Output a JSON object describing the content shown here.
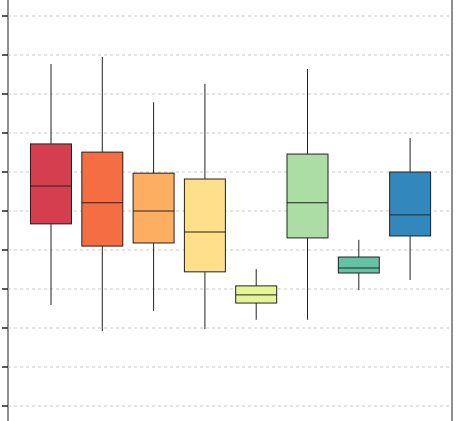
{
  "chart_data": {
    "type": "box",
    "ylim": [
      0,
      10
    ],
    "yticks": [
      0,
      1,
      2,
      3,
      4,
      5,
      6,
      7,
      8,
      9,
      10
    ],
    "grid": true,
    "boxes": [
      {
        "color": "#d53e4f",
        "whisker_low": 2.59,
        "q1": 4.67,
        "median": 5.64,
        "q3": 6.72,
        "whisker_high": 8.77
      },
      {
        "color": "#f46d43",
        "whisker_low": 1.92,
        "q1": 4.1,
        "median": 5.21,
        "q3": 6.51,
        "whisker_high": 8.95
      },
      {
        "color": "#fdae61",
        "whisker_low": 2.44,
        "q1": 4.18,
        "median": 5.0,
        "q3": 5.97,
        "whisker_high": 7.79
      },
      {
        "color": "#fee08b",
        "whisker_low": 1.97,
        "q1": 3.44,
        "median": 4.46,
        "q3": 5.82,
        "whisker_high": 8.26
      },
      {
        "color": "#e6f598",
        "whisker_low": 2.21,
        "q1": 2.64,
        "median": 2.85,
        "q3": 3.08,
        "whisker_high": 3.51
      },
      {
        "color": "#abdda4",
        "whisker_low": 2.21,
        "q1": 4.31,
        "median": 5.21,
        "q3": 6.46,
        "whisker_high": 8.64
      },
      {
        "color": "#66c2a5",
        "whisker_low": 2.97,
        "q1": 3.41,
        "median": 3.54,
        "q3": 3.82,
        "whisker_high": 4.26
      },
      {
        "color": "#3288bd",
        "whisker_low": 3.23,
        "q1": 4.36,
        "median": 4.9,
        "q3": 6.0,
        "whisker_high": 6.87
      }
    ]
  }
}
